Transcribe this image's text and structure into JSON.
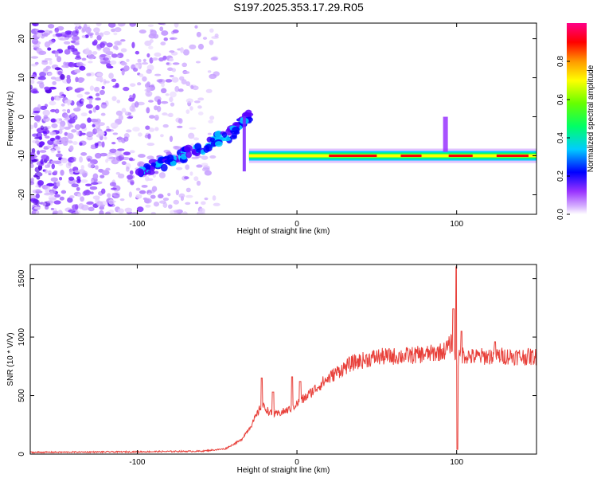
{
  "title": "S197.2025.353.17.29.R05",
  "chart_data": [
    {
      "type": "heatmap",
      "xlabel": "Height of straight line (km)",
      "ylabel": "Frequency (Hz)",
      "xlim": [
        -167,
        150
      ],
      "ylim": [
        -25,
        24
      ],
      "x_ticks": [
        -100,
        0,
        100
      ],
      "y_ticks": [
        20,
        10,
        0,
        -10,
        -20
      ],
      "colorbar": {
        "label": "Normalized spectral amplitude",
        "range": [
          0,
          1
        ],
        "ticks": [
          0.0,
          0.2,
          0.4,
          0.6,
          0.8
        ],
        "tick_labels": [
          "0.0",
          "0.2",
          "0.4",
          "0.6",
          "0.8"
        ],
        "colors": [
          "#ffffff",
          "#cc99ff",
          "#7a1fff",
          "#0000ff",
          "#00ccff",
          "#00ff66",
          "#66ff00",
          "#ffff00",
          "#ff9900",
          "#ff0000",
          "#ff0088"
        ]
      },
      "features": {
        "noise_region_x": [
          -167,
          -50
        ],
        "rising_band": [
          [
            -100,
            -15
          ],
          [
            -90,
            -13
          ],
          [
            -80,
            -11
          ],
          [
            -70,
            -9.5
          ],
          [
            -60,
            -8
          ],
          [
            -50,
            -6
          ],
          [
            -40,
            -4
          ],
          [
            -35,
            -2
          ],
          [
            -30,
            0
          ]
        ],
        "flat_band_freq": -10,
        "flat_band_x": [
          -30,
          150
        ],
        "spike_x": 93
      }
    },
    {
      "type": "line",
      "xlabel": "Height of straight line (km)",
      "ylabel": "SNR (10 * V/V)",
      "xlim": [
        -167,
        150
      ],
      "ylim": [
        0,
        1620
      ],
      "x_ticks": [
        -100,
        0,
        100
      ],
      "y_ticks": [
        0,
        500,
        1000,
        1500
      ],
      "series": [
        {
          "name": "SNR",
          "color": "#e8403a",
          "envelope": [
            [
              -167,
              15
            ],
            [
              -100,
              20
            ],
            [
              -60,
              25
            ],
            [
              -45,
              45
            ],
            [
              -35,
              120
            ],
            [
              -28,
              260
            ],
            [
              -22,
              420
            ],
            [
              -15,
              330
            ],
            [
              -5,
              380
            ],
            [
              5,
              480
            ],
            [
              15,
              600
            ],
            [
              25,
              700
            ],
            [
              35,
              780
            ],
            [
              50,
              830
            ],
            [
              70,
              840
            ],
            [
              85,
              860
            ],
            [
              92,
              880
            ],
            [
              97,
              950
            ],
            [
              100,
              800
            ],
            [
              104,
              850
            ],
            [
              110,
              830
            ],
            [
              125,
              840
            ],
            [
              150,
              830
            ]
          ],
          "spikes": [
            [
              -22,
              650
            ],
            [
              -15,
              530
            ],
            [
              -3,
              660
            ],
            [
              2,
              620
            ],
            [
              98,
              1240
            ],
            [
              100,
              1600
            ],
            [
              100.5,
              40
            ],
            [
              103,
              1050
            ],
            [
              124,
              960
            ]
          ]
        }
      ]
    }
  ]
}
